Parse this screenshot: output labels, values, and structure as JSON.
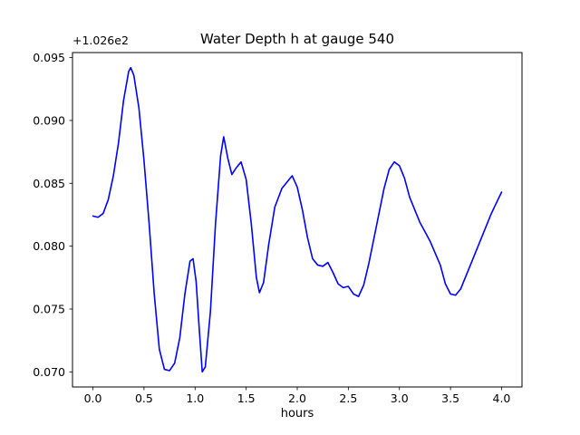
{
  "chart_data": {
    "type": "line",
    "title": "Water Depth h at gauge 540",
    "xlabel": "hours",
    "ylabel": "",
    "offset_text": "+1.026e2",
    "line_color": "#0000ff",
    "frame_color": "#000000",
    "grid": false,
    "legend": "none",
    "xlim": [
      -0.2,
      4.2
    ],
    "ylim": [
      0.0688,
      0.0954
    ],
    "xticks": [
      0.0,
      0.5,
      1.0,
      1.5,
      2.0,
      2.5,
      3.0,
      3.5,
      4.0
    ],
    "xtick_labels": [
      "0.0",
      "0.5",
      "1.0",
      "1.5",
      "2.0",
      "2.5",
      "3.0",
      "3.5",
      "4.0"
    ],
    "yticks": [
      0.07,
      0.075,
      0.08,
      0.085,
      0.09,
      0.095
    ],
    "ytick_labels": [
      "0.070",
      "0.075",
      "0.080",
      "0.085",
      "0.090",
      "0.095"
    ],
    "x": [
      0.0,
      0.05,
      0.1,
      0.15,
      0.2,
      0.25,
      0.3,
      0.35,
      0.37,
      0.4,
      0.45,
      0.5,
      0.55,
      0.6,
      0.65,
      0.7,
      0.75,
      0.8,
      0.85,
      0.9,
      0.95,
      0.98,
      1.01,
      1.04,
      1.07,
      1.1,
      1.15,
      1.2,
      1.25,
      1.28,
      1.32,
      1.36,
      1.4,
      1.45,
      1.5,
      1.55,
      1.6,
      1.63,
      1.67,
      1.72,
      1.78,
      1.85,
      1.9,
      1.95,
      2.0,
      2.05,
      2.1,
      2.15,
      2.2,
      2.25,
      2.3,
      2.35,
      2.4,
      2.45,
      2.5,
      2.55,
      2.6,
      2.65,
      2.7,
      2.75,
      2.8,
      2.85,
      2.9,
      2.95,
      3.0,
      3.05,
      3.1,
      3.2,
      3.3,
      3.4,
      3.45,
      3.5,
      3.55,
      3.6,
      3.7,
      3.8,
      3.9,
      4.0
    ],
    "y": [
      0.0824,
      0.0823,
      0.0826,
      0.0837,
      0.0856,
      0.0882,
      0.0916,
      0.0939,
      0.0942,
      0.0936,
      0.091,
      0.0868,
      0.0818,
      0.0762,
      0.0718,
      0.0702,
      0.0701,
      0.0707,
      0.0727,
      0.0762,
      0.0788,
      0.079,
      0.0772,
      0.0735,
      0.07,
      0.0704,
      0.0748,
      0.0818,
      0.0872,
      0.0887,
      0.087,
      0.0857,
      0.0862,
      0.0867,
      0.0853,
      0.0818,
      0.0775,
      0.0763,
      0.0771,
      0.0801,
      0.0831,
      0.0846,
      0.0851,
      0.0856,
      0.0847,
      0.0829,
      0.0807,
      0.079,
      0.0785,
      0.0784,
      0.0787,
      0.0779,
      0.077,
      0.0767,
      0.0768,
      0.0762,
      0.076,
      0.0769,
      0.0786,
      0.0806,
      0.0826,
      0.0846,
      0.0861,
      0.0867,
      0.0864,
      0.0854,
      0.0839,
      0.0819,
      0.0804,
      0.0785,
      0.077,
      0.0762,
      0.0761,
      0.0766,
      0.0786,
      0.0806,
      0.0826,
      0.0843
    ]
  }
}
